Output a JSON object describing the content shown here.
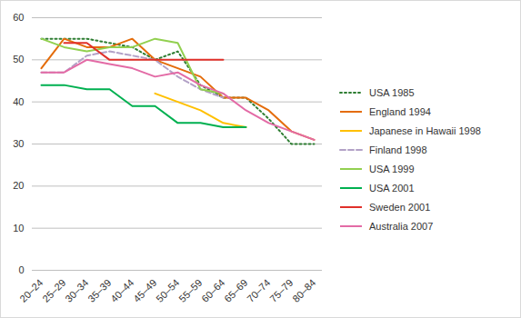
{
  "chart_data": {
    "type": "line",
    "categories": [
      "20–24",
      "25–29",
      "30–34",
      "35–39",
      "40–44",
      "45–49",
      "50–54",
      "55–59",
      "60–64",
      "65–69",
      "70–74",
      "75–79",
      "80–84"
    ],
    "series": [
      {
        "name": "USA 1985",
        "color": "#2e7d32",
        "line_style": "dotted",
        "values": [
          55,
          55,
          55,
          54,
          53,
          50,
          52,
          44,
          41,
          41,
          36,
          30,
          30
        ]
      },
      {
        "name": "England 1994",
        "color": "#e46c0a",
        "line_style": "solid",
        "values": [
          48,
          55,
          53,
          53,
          55,
          50,
          48,
          46,
          41,
          41,
          38,
          33,
          31
        ]
      },
      {
        "name": "Japanese in Hawaii 1998",
        "color": "#ffc000",
        "line_style": "solid",
        "values": [
          null,
          null,
          null,
          null,
          null,
          42,
          40,
          38,
          35,
          34,
          null,
          null,
          null
        ]
      },
      {
        "name": "Finland 1998",
        "color": "#b3a2c7",
        "line_style": "dashed",
        "values": [
          47,
          47,
          51,
          52,
          51,
          50,
          46,
          43,
          41,
          null,
          null,
          null,
          null
        ]
      },
      {
        "name": "USA 1999",
        "color": "#92d050",
        "line_style": "solid",
        "values": [
          55,
          53,
          52,
          53,
          53,
          55,
          54,
          43,
          42,
          null,
          null,
          null,
          null
        ]
      },
      {
        "name": "USA 2001",
        "color": "#00b050",
        "line_style": "solid",
        "values": [
          44,
          44,
          43,
          43,
          39,
          39,
          35,
          35,
          34,
          34,
          null,
          null,
          null
        ]
      },
      {
        "name": "Sweden 2001",
        "color": "#e0302a",
        "line_style": "solid",
        "values": [
          null,
          54,
          54,
          50,
          50,
          50,
          50,
          50,
          50,
          null,
          null,
          null,
          null
        ]
      },
      {
        "name": "Australia 2007",
        "color": "#e36ba6",
        "line_style": "solid",
        "values": [
          47,
          47,
          50,
          49,
          48,
          46,
          47,
          44,
          42,
          38,
          35,
          33,
          31
        ]
      }
    ],
    "ylim": [
      0,
      60
    ],
    "yticks": [
      0,
      10,
      20,
      30,
      40,
      50,
      60
    ],
    "grid": true,
    "legend": "right"
  }
}
